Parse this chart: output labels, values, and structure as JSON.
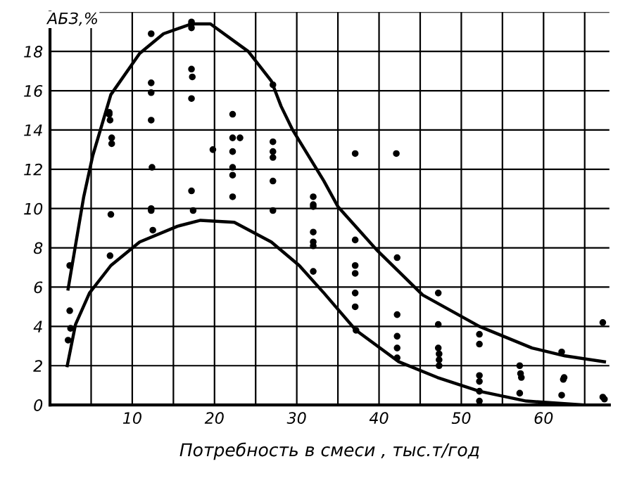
{
  "chart_data": {
    "type": "scatter",
    "xlabel": "Потребность в смеси , тыс.т/год",
    "ylabel": "АБЗ,%",
    "xlim": [
      0,
      68
    ],
    "ylim": [
      0,
      20
    ],
    "xticks": [
      {
        "value": 5,
        "label": null
      },
      10,
      {
        "value": 15,
        "label": null
      },
      20,
      {
        "value": 25,
        "label": null
      },
      30,
      {
        "value": 35,
        "label": null
      },
      40,
      {
        "value": 45,
        "label": null
      },
      50,
      {
        "value": 55,
        "label": null
      },
      60,
      {
        "value": 65,
        "label": null
      }
    ],
    "yticks": [
      0,
      2,
      4,
      6,
      8,
      10,
      12,
      14,
      16,
      18,
      {
        "value": 20,
        "label": null
      }
    ],
    "grid": true,
    "legend": false,
    "marker": "circle",
    "series": [
      {
        "color": "#000000",
        "x": [
          2.4,
          2.4,
          2.5,
          2.2,
          7.2,
          7.2,
          7.3,
          7.5,
          7.5,
          7.4,
          7.3,
          12.3,
          12.3,
          12.3,
          12.3,
          12.4,
          12.3,
          12.3,
          12.5,
          17.2,
          17.2,
          17.2,
          17.2,
          17.3,
          17.2,
          17.2,
          17.4,
          19.8,
          22.2,
          22.2,
          23.1,
          22.2,
          22.2,
          22.2,
          22.2,
          27.1,
          27.1,
          27.1,
          27.1,
          27.1,
          27.1,
          32,
          32,
          32,
          32,
          32,
          32,
          32,
          37.1,
          37.1,
          37.1,
          37.1,
          37.1,
          37.1,
          37.2,
          42.1,
          42.2,
          42.2,
          42.2,
          42.2,
          42.2,
          47.2,
          47.2,
          47.2,
          47.3,
          47.3,
          47.3,
          52.2,
          52.2,
          52.2,
          52.2,
          52.2,
          52.2,
          57.1,
          57.2,
          57.3,
          57.1,
          62.2,
          62.5,
          62.4,
          62.2,
          67.2,
          67.2,
          67.4
        ],
        "values": [
          7.1,
          4.8,
          3.9,
          3.3,
          14.9,
          14.8,
          14.5,
          13.6,
          13.3,
          9.7,
          7.6,
          18.9,
          16.4,
          15.9,
          14.5,
          12.1,
          10.0,
          9.9,
          8.9,
          19.5,
          19.4,
          19.2,
          17.1,
          16.7,
          15.6,
          10.9,
          9.9,
          13.0,
          14.8,
          13.6,
          13.6,
          12.9,
          12.1,
          11.7,
          10.6,
          16.3,
          13.4,
          12.9,
          12.6,
          11.4,
          9.9,
          10.6,
          10.2,
          8.8,
          8.3,
          8.1,
          6.8,
          10.1,
          12.8,
          8.4,
          7.1,
          6.7,
          5.7,
          5.0,
          3.8,
          12.8,
          7.5,
          4.6,
          3.5,
          2.9,
          2.4,
          5.7,
          4.1,
          2.9,
          2.6,
          2.3,
          2.0,
          3.6,
          3.1,
          1.5,
          1.2,
          0.7,
          0.2,
          2.0,
          1.6,
          1.4,
          0.6,
          2.7,
          1.4,
          1.3,
          0.5,
          4.2,
          0.4,
          0.3
        ]
      },
      {
        "type": "line",
        "color": "#000000",
        "marker": "none",
        "x": [
          2.2,
          4.1,
          5.2,
          7.4,
          10.9,
          13.8,
          17.2,
          19.5,
          24.1,
          26.9,
          28.1,
          29.5,
          33.3,
          35,
          39.7,
          45.3,
          52.2,
          58.6,
          62.6,
          67.4
        ],
        "values": [
          5.9,
          10.6,
          12.7,
          15.8,
          17.9,
          18.9,
          19.4,
          19.4,
          18,
          16.5,
          15.2,
          14.0,
          11.4,
          10.1,
          7.9,
          5.6,
          4.0,
          2.9,
          2.5,
          2.2
        ]
      },
      {
        "type": "line",
        "color": "#000000",
        "marker": "none",
        "x": [
          2.1,
          3.1,
          4.8,
          7.4,
          10.9,
          15.5,
          18.3,
          22.4,
          26.9,
          30.3,
          33.3,
          37.2,
          42.4,
          47.1,
          52.2,
          57.9,
          64.8
        ],
        "values": [
          2.0,
          4.1,
          5.7,
          7.1,
          8.3,
          9.1,
          9.4,
          9.3,
          8.3,
          7.1,
          5.7,
          3.8,
          2.2,
          1.4,
          0.7,
          0.2,
          0
        ]
      }
    ]
  }
}
